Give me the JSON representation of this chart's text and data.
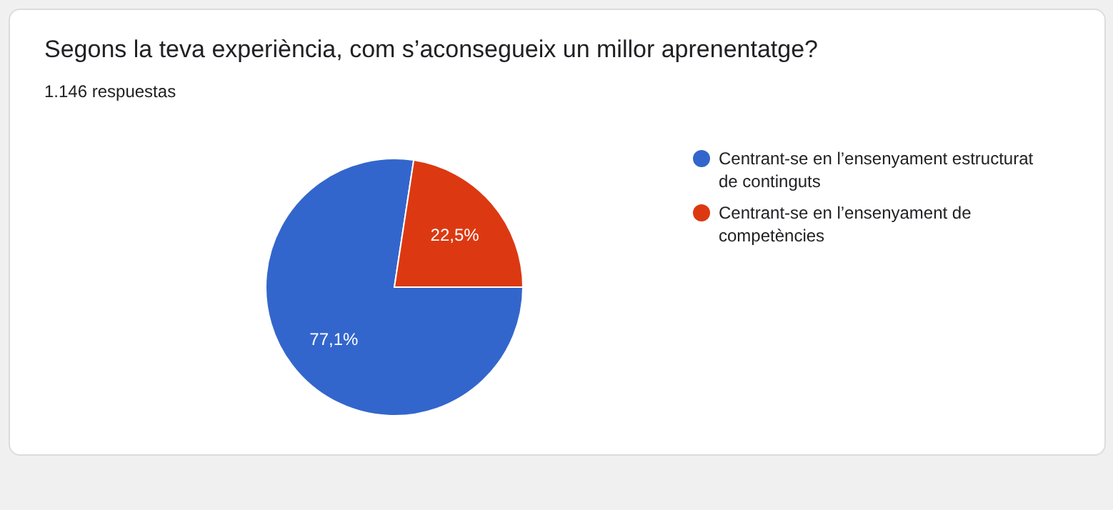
{
  "chart_data": {
    "type": "pie",
    "title": "Segons la teva experiència, com s’aconsegueix un millor aprenentatge?",
    "subtitle": "1.146 respuestas",
    "categories": [
      "Centrant-se en l’ensenyament estructurat de continguts",
      "Centrant-se en l’ensenyament de competències"
    ],
    "values": [
      77.1,
      22.5
    ],
    "colors": [
      "#3366cc",
      "#dc3912"
    ],
    "value_labels": [
      "77,1%",
      "22,5%"
    ],
    "legend": "right"
  }
}
